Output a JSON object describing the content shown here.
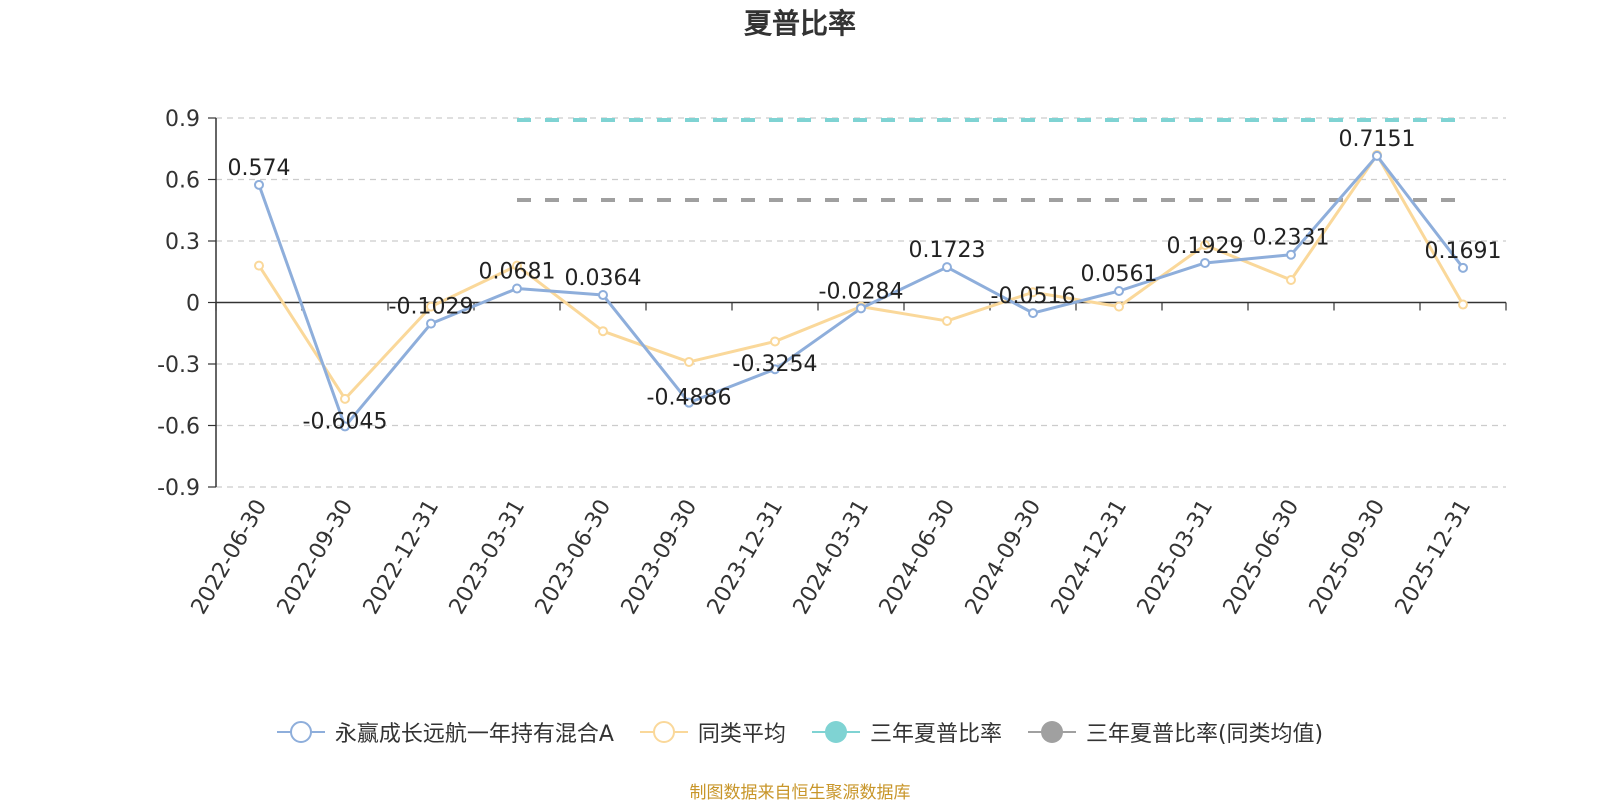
{
  "chart_data": {
    "type": "line",
    "title": "夏普比率",
    "categories": [
      "2022-06-30",
      "2022-09-30",
      "2022-12-31",
      "2023-03-31",
      "2023-06-30",
      "2023-09-30",
      "2023-12-31",
      "2024-03-31",
      "2024-06-30",
      "2024-09-30",
      "2024-12-31",
      "2025-03-31",
      "2025-06-30",
      "2025-09-30",
      "2025-12-31"
    ],
    "yticks": [
      "0.9",
      "0.6",
      "0.3",
      "0",
      "-0.3",
      "-0.6",
      "-0.9"
    ],
    "ylim": [
      -0.9,
      0.9
    ],
    "grid": true,
    "legend_position": "bottom",
    "series": [
      {
        "name": "永赢成长远航一年持有混合A",
        "color": "#8eaedb",
        "values": [
          0.574,
          -0.6045,
          -0.1029,
          0.0681,
          0.0364,
          -0.4886,
          -0.3254,
          -0.0284,
          0.1723,
          -0.0516,
          0.0561,
          0.1929,
          0.2331,
          0.7151,
          0.1691
        ],
        "labels": [
          "0.574",
          "-0.6045",
          "-0.1029",
          "0.0681",
          "0.0364",
          "-0.4886",
          "-0.3254",
          "-0.0284",
          "0.1723",
          "-0.0516",
          "0.0561",
          "0.1929",
          "0.2331",
          "0.7151",
          "0.1691"
        ]
      },
      {
        "name": "同类平均",
        "color": "#fad89a",
        "values": [
          0.18,
          -0.47,
          -0.02,
          0.18,
          -0.14,
          -0.29,
          -0.19,
          -0.02,
          -0.09,
          0.05,
          -0.02,
          0.28,
          0.11,
          0.72,
          -0.01
        ]
      }
    ],
    "reference_lines": [
      {
        "name": "三年夏普比率",
        "color": "#7fd3d3",
        "value": 0.89,
        "from": "2023-03-31",
        "to": "2025-12-31"
      },
      {
        "name": "三年夏普比率(同类均值)",
        "color": "#a0a0a0",
        "value": 0.5,
        "from": "2023-03-31",
        "to": "2025-12-31"
      }
    ]
  },
  "legend": {
    "items": [
      {
        "label": "永赢成长远航一年持有混合A",
        "color": "#8eaedb",
        "icon": "hollow-circle-line"
      },
      {
        "label": "同类平均",
        "color": "#fad89a",
        "icon": "hollow-circle-line"
      },
      {
        "label": "三年夏普比率",
        "color": "#7fd3d3",
        "icon": "filled-circle-line"
      },
      {
        "label": "三年夏普比率(同类均值)",
        "color": "#a0a0a0",
        "icon": "filled-circle-line"
      }
    ]
  },
  "source_note": "制图数据来自恒生聚源数据库"
}
